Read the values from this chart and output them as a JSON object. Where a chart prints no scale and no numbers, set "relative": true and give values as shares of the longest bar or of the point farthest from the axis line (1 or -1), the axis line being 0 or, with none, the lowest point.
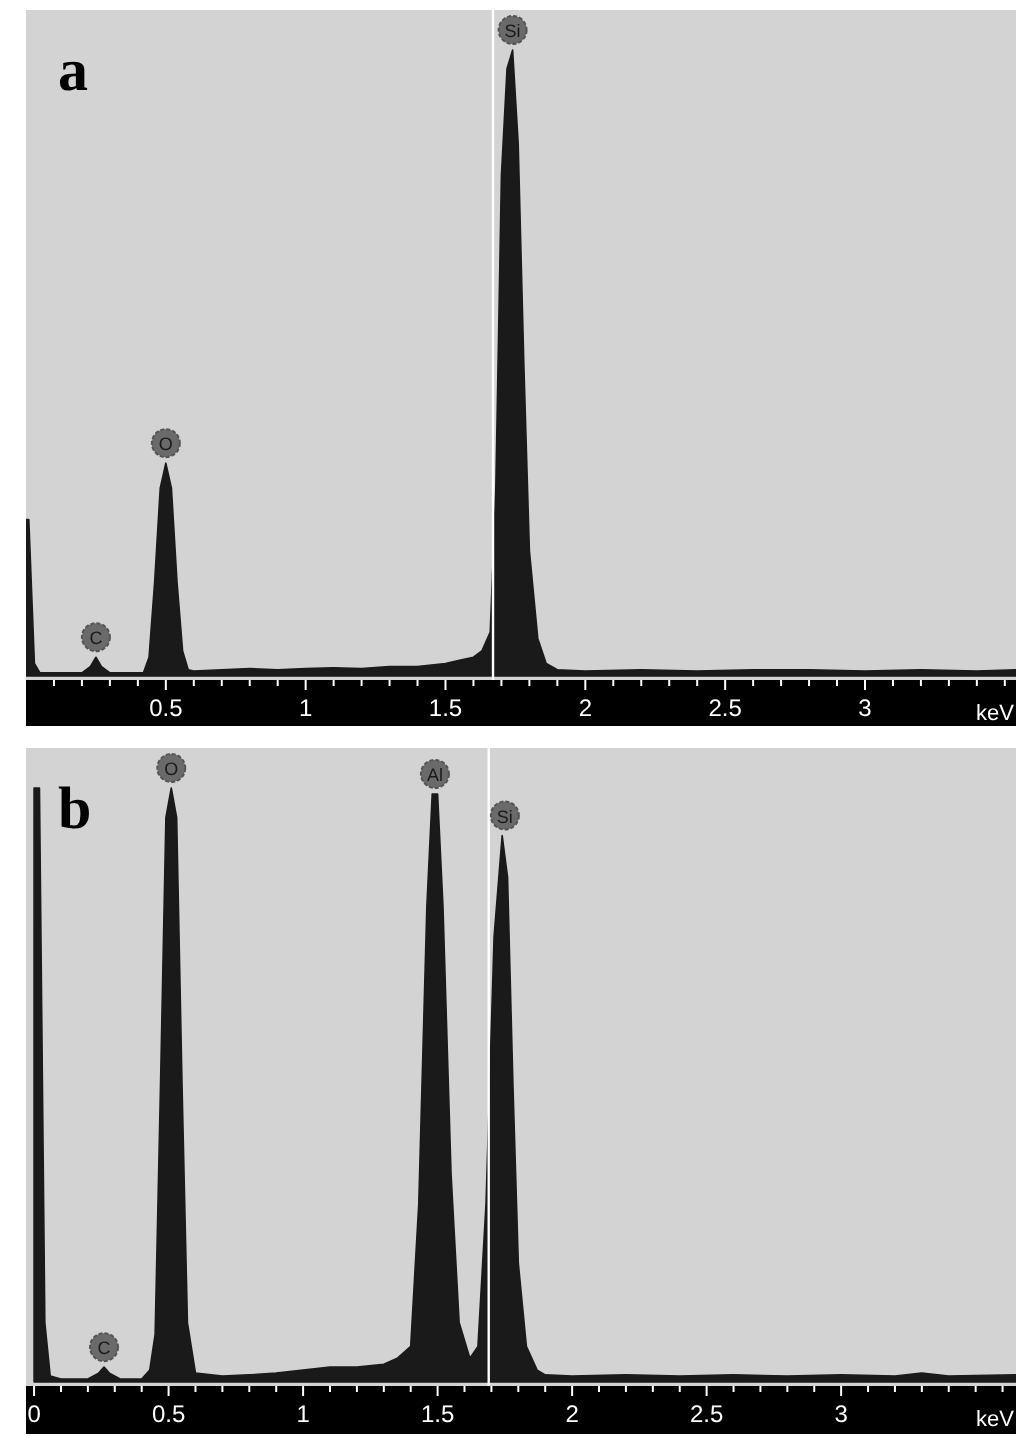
{
  "chart_data": [
    {
      "type": "area",
      "title": "a",
      "xlabel": "keV",
      "relative": true,
      "xlim": [
        0,
        3.54
      ],
      "xticks": [
        {
          "value": 0.1,
          "label": null
        },
        {
          "value": 0.2,
          "label": null
        },
        {
          "value": 0.3,
          "label": null
        },
        {
          "value": 0.4,
          "label": null
        },
        0.5,
        {
          "value": 0.6,
          "label": null
        },
        {
          "value": 0.7,
          "label": null
        },
        {
          "value": 0.8,
          "label": null
        },
        {
          "value": 0.9,
          "label": null
        },
        1,
        {
          "value": 1.1,
          "label": null
        },
        {
          "value": 1.2,
          "label": null
        },
        {
          "value": 1.3,
          "label": null
        },
        {
          "value": 1.4,
          "label": null
        },
        1.5,
        {
          "value": 1.6,
          "label": null
        },
        {
          "value": 1.7,
          "label": null
        },
        {
          "value": 1.8,
          "label": null
        },
        {
          "value": 1.9,
          "label": null
        },
        2,
        {
          "value": 2.1,
          "label": null
        },
        {
          "value": 2.2,
          "label": null
        },
        {
          "value": 2.3,
          "label": null
        },
        {
          "value": 2.4,
          "label": null
        },
        2.5,
        {
          "value": 2.6,
          "label": null
        },
        {
          "value": 2.7,
          "label": null
        },
        {
          "value": 2.8,
          "label": null
        },
        {
          "value": 2.9,
          "label": null
        },
        3,
        {
          "value": 3.1,
          "label": null
        },
        {
          "value": 3.2,
          "label": null
        },
        {
          "value": 3.3,
          "label": null
        },
        {
          "value": 3.4,
          "label": null
        },
        {
          "value": 3.5,
          "label": null
        }
      ],
      "series": [
        {
          "color": "#1a1a1a",
          "x": [
            0,
            0.01,
            0.03,
            0.05,
            0.1,
            0.2,
            0.23,
            0.25,
            0.27,
            0.3,
            0.42,
            0.44,
            0.46,
            0.48,
            0.5,
            0.52,
            0.54,
            0.56,
            0.58,
            0.6,
            0.7,
            0.8,
            0.9,
            1.0,
            1.1,
            1.2,
            1.3,
            1.4,
            1.5,
            1.55,
            1.6,
            1.63,
            1.66,
            1.68,
            1.7,
            1.72,
            1.74,
            1.76,
            1.78,
            1.8,
            1.83,
            1.86,
            1.9,
            2.0,
            2.2,
            2.4,
            2.6,
            2.8,
            3.0,
            3.2,
            3.4,
            3.54
          ],
          "values": [
            0.25,
            0.25,
            0.02,
            0.005,
            0.005,
            0.005,
            0.015,
            0.03,
            0.015,
            0.005,
            0.005,
            0.03,
            0.15,
            0.3,
            0.34,
            0.3,
            0.15,
            0.04,
            0.01,
            0.008,
            0.01,
            0.012,
            0.01,
            0.012,
            0.013,
            0.012,
            0.015,
            0.015,
            0.02,
            0.025,
            0.03,
            0.04,
            0.07,
            0.3,
            0.8,
            0.97,
            1,
            0.85,
            0.5,
            0.2,
            0.06,
            0.02,
            0.01,
            0.008,
            0.01,
            0.008,
            0.01,
            0.01,
            0.008,
            0.01,
            0.008,
            0.01
          ]
        }
      ],
      "annotations": [
        {
          "text": "C",
          "x": 0.25,
          "y": 0.03
        },
        {
          "text": "O",
          "x": 0.5,
          "y": 0.34
        },
        {
          "text": "Si",
          "x": 1.74,
          "y": 1
        }
      ],
      "ref_lines": [
        {
          "axis": "x",
          "value": 1.67,
          "color": "#ffffff"
        }
      ]
    },
    {
      "type": "area",
      "title": "b",
      "xlabel": "keV",
      "relative": true,
      "xlim": [
        -0.03,
        3.65
      ],
      "xticks": [
        0,
        {
          "value": 0.1,
          "label": null
        },
        {
          "value": 0.2,
          "label": null
        },
        {
          "value": 0.3,
          "label": null
        },
        {
          "value": 0.4,
          "label": null
        },
        0.5,
        {
          "value": 0.6,
          "label": null
        },
        {
          "value": 0.7,
          "label": null
        },
        {
          "value": 0.8,
          "label": null
        },
        {
          "value": 0.9,
          "label": null
        },
        1,
        {
          "value": 1.1,
          "label": null
        },
        {
          "value": 1.2,
          "label": null
        },
        {
          "value": 1.3,
          "label": null
        },
        {
          "value": 1.4,
          "label": null
        },
        1.5,
        {
          "value": 1.6,
          "label": null
        },
        {
          "value": 1.7,
          "label": null
        },
        {
          "value": 1.8,
          "label": null
        },
        {
          "value": 1.9,
          "label": null
        },
        2,
        {
          "value": 2.1,
          "label": null
        },
        {
          "value": 2.2,
          "label": null
        },
        {
          "value": 2.3,
          "label": null
        },
        {
          "value": 2.4,
          "label": null
        },
        2.5,
        {
          "value": 2.6,
          "label": null
        },
        {
          "value": 2.7,
          "label": null
        },
        {
          "value": 2.8,
          "label": null
        },
        {
          "value": 2.9,
          "label": null
        },
        3,
        {
          "value": 3.1,
          "label": null
        },
        {
          "value": 3.2,
          "label": null
        },
        {
          "value": 3.3,
          "label": null
        },
        {
          "value": 3.4,
          "label": null
        },
        {
          "value": 3.5,
          "label": null
        },
        {
          "value": 3.6,
          "label": null
        }
      ],
      "series": [
        {
          "color": "#1a1a1a",
          "x": [
            0,
            0.02,
            0.04,
            0.06,
            0.1,
            0.2,
            0.24,
            0.26,
            0.28,
            0.32,
            0.4,
            0.43,
            0.45,
            0.47,
            0.49,
            0.51,
            0.53,
            0.55,
            0.57,
            0.6,
            0.7,
            0.8,
            0.9,
            1.0,
            1.1,
            1.2,
            1.3,
            1.35,
            1.4,
            1.43,
            1.46,
            1.48,
            1.5,
            1.52,
            1.55,
            1.58,
            1.62,
            1.65,
            1.68,
            1.71,
            1.74,
            1.76,
            1.78,
            1.8,
            1.83,
            1.87,
            1.9,
            2.0,
            2.2,
            2.4,
            2.6,
            2.8,
            3.0,
            3.2,
            3.3,
            3.4,
            3.65
          ],
          "values": [
            1,
            1,
            0.1,
            0.01,
            0.005,
            0.005,
            0.015,
            0.025,
            0.015,
            0.005,
            0.005,
            0.02,
            0.08,
            0.5,
            0.95,
            1,
            0.95,
            0.5,
            0.1,
            0.015,
            0.01,
            0.012,
            0.015,
            0.02,
            0.025,
            0.025,
            0.03,
            0.04,
            0.06,
            0.3,
            0.8,
            0.99,
            0.99,
            0.8,
            0.35,
            0.1,
            0.04,
            0.06,
            0.3,
            0.75,
            0.92,
            0.85,
            0.5,
            0.2,
            0.06,
            0.02,
            0.012,
            0.01,
            0.012,
            0.01,
            0.012,
            0.01,
            0.012,
            0.01,
            0.015,
            0.01,
            0.012
          ]
        }
      ],
      "annotations": [
        {
          "text": "C",
          "x": 0.26,
          "y": 0.025
        },
        {
          "text": "O",
          "x": 0.51,
          "y": 1
        },
        {
          "text": "Al",
          "x": 1.49,
          "y": 0.99
        },
        {
          "text": "Si",
          "x": 1.75,
          "y": 0.92
        }
      ],
      "ref_lines": [
        {
          "axis": "x",
          "value": 1.69,
          "color": "#ffffff"
        }
      ]
    }
  ]
}
